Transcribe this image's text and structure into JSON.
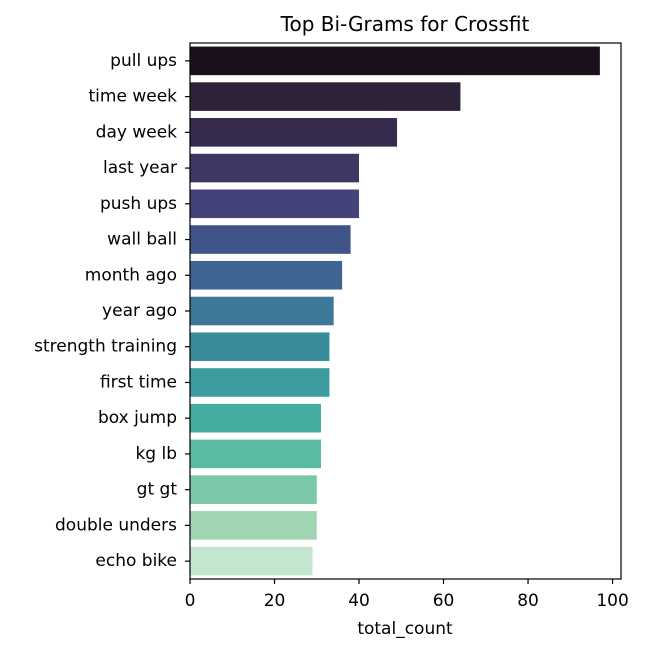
{
  "chart_data": {
    "type": "bar",
    "orientation": "horizontal",
    "title": "Top Bi-Grams for Crossfit",
    "xlabel": "total_count",
    "ylabel": "",
    "xlim": [
      0,
      102
    ],
    "xticks": [
      0,
      20,
      40,
      60,
      80,
      100
    ],
    "grid": false,
    "categories": [
      "pull ups",
      "time week",
      "day week",
      "last year",
      "push ups",
      "wall ball",
      "month ago",
      "year ago",
      "strength training",
      "first time",
      "box jump",
      "kg lb",
      "gt gt",
      "double unders",
      "echo bike"
    ],
    "values": [
      97,
      64,
      49,
      40,
      40,
      38,
      36,
      34,
      33,
      33,
      31,
      31,
      30,
      30,
      29
    ],
    "colors": [
      "#1b111d",
      "#2e2339",
      "#362b4d",
      "#3c3763",
      "#43437a",
      "#405489",
      "#3f6693",
      "#3d7898",
      "#3a8b9c",
      "#3c9c9f",
      "#45ada0",
      "#5abba4",
      "#7bc8a8",
      "#a1d5b4",
      "#c4e6cf"
    ]
  }
}
